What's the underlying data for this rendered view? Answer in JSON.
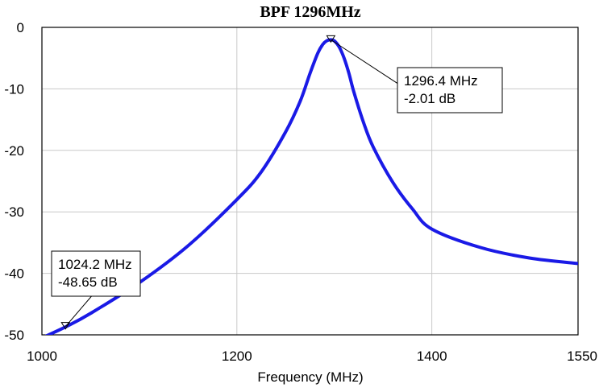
{
  "chart_data": {
    "type": "line",
    "title": "BPF 1296MHz",
    "xlabel": "Frequency (MHz)",
    "ylabel": "",
    "xlim": [
      1000,
      1550
    ],
    "ylim": [
      -50,
      0
    ],
    "x_ticks": [
      1000,
      1200,
      1400,
      1550
    ],
    "x_tick_labels": [
      "1000",
      "1200",
      "1400",
      "1550"
    ],
    "y_ticks": [
      0,
      -10,
      -20,
      -30,
      -40,
      -50
    ],
    "y_tick_labels": [
      "0",
      "-10",
      "-20",
      "-30",
      "-40",
      "-50"
    ],
    "grid": true,
    "series": [
      {
        "color": "#1a1ae6",
        "x": [
          1000,
          1025,
          1050,
          1100,
          1150,
          1200,
          1225,
          1250,
          1265,
          1275,
          1283,
          1288,
          1292,
          1296.4,
          1300,
          1305,
          1310,
          1315,
          1320,
          1330,
          1340,
          1360,
          1380,
          1400,
          1450,
          1500,
          1550
        ],
        "y": [
          -50.5,
          -48.65,
          -46.5,
          -41.5,
          -35.5,
          -28,
          -23.5,
          -17,
          -12,
          -7.5,
          -4.2,
          -2.8,
          -2.2,
          -2.01,
          -2.2,
          -3.2,
          -5,
          -7.5,
          -10.5,
          -15.5,
          -19.5,
          -25.2,
          -29.5,
          -32.8,
          -35.8,
          -37.5,
          -38.4
        ]
      }
    ],
    "markers": [
      {
        "label_line1": "1296.4 MHz",
        "label_line2": "-2.01 dB",
        "x": 1296.4,
        "y": -2.01
      },
      {
        "label_line1": "1024.2 MHz",
        "label_line2": "-48.65 dB",
        "x": 1024.2,
        "y": -48.65
      }
    ]
  }
}
